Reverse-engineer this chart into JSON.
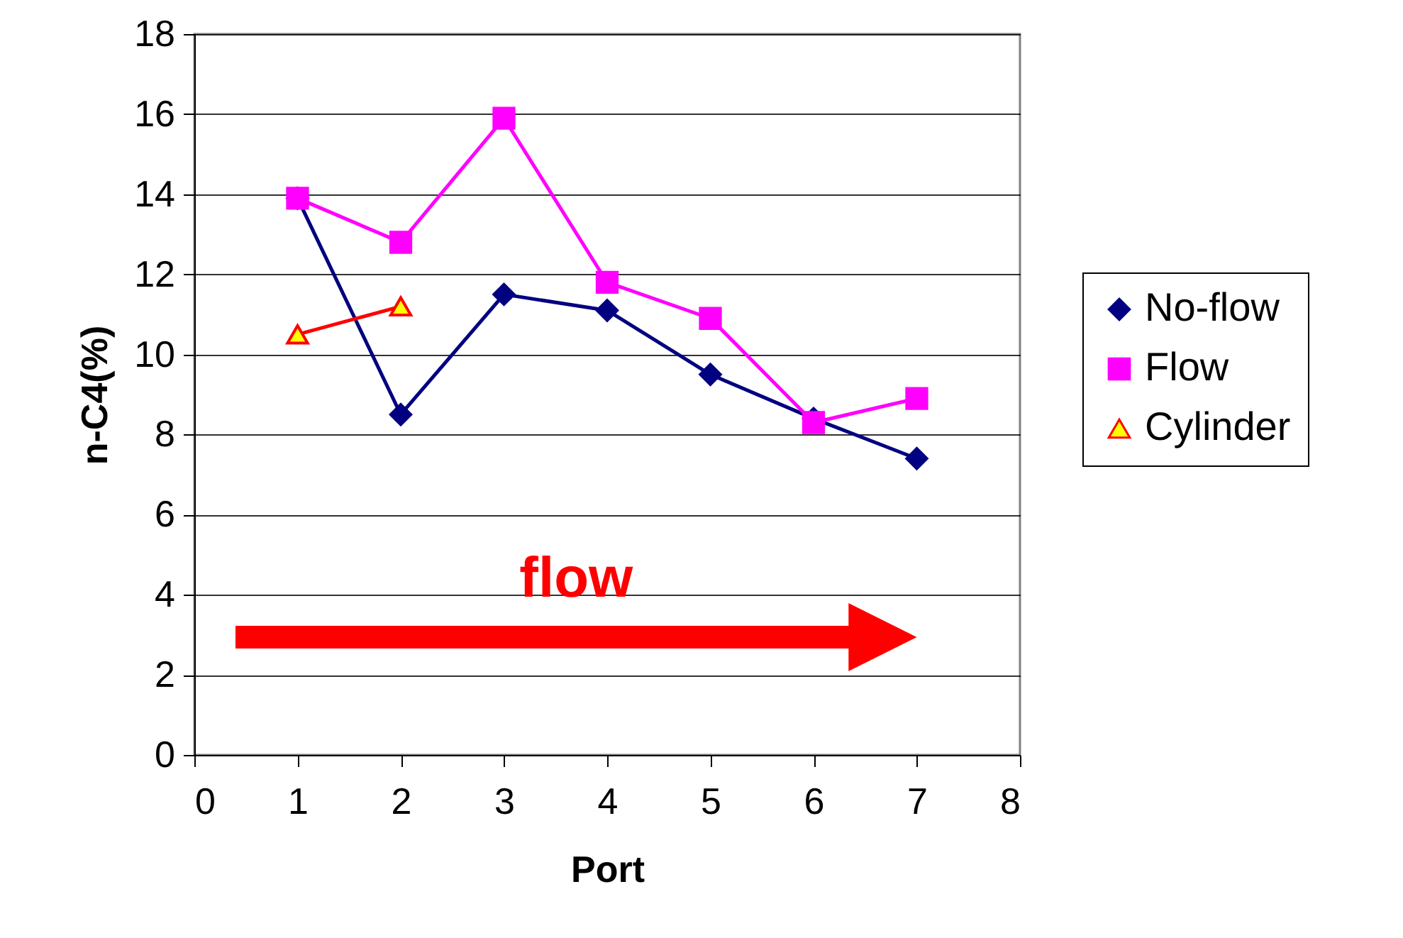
{
  "chart_data": {
    "type": "line",
    "xlabel": "Port",
    "ylabel": "n-C4(%)",
    "annotations": [
      "flow"
    ],
    "xlim": [
      0,
      8
    ],
    "xticks": [
      0,
      1,
      2,
      3,
      4,
      5,
      6,
      7,
      8
    ],
    "ylim": [
      0,
      18
    ],
    "yticks": [
      0,
      2,
      4,
      6,
      8,
      10,
      12,
      14,
      16,
      18
    ],
    "grid": "y",
    "legend": "right",
    "series": [
      {
        "name": "No-flow",
        "color": "#000080",
        "marker": "diamond",
        "x": [
          1,
          2,
          3,
          4,
          5,
          6,
          7
        ],
        "values": [
          13.9,
          8.5,
          11.5,
          11.1,
          9.5,
          8.4,
          7.4
        ]
      },
      {
        "name": "Flow",
        "color": "#ff00ff",
        "marker": "square",
        "x": [
          1,
          2,
          3,
          4,
          5,
          6,
          7
        ],
        "values": [
          13.9,
          12.8,
          15.9,
          11.8,
          10.9,
          8.3,
          8.9
        ]
      },
      {
        "name": "Cylinder",
        "color": "#ff0000",
        "marker": "triangle",
        "x": [
          1,
          2
        ],
        "values": [
          10.5,
          11.2
        ]
      }
    ]
  }
}
